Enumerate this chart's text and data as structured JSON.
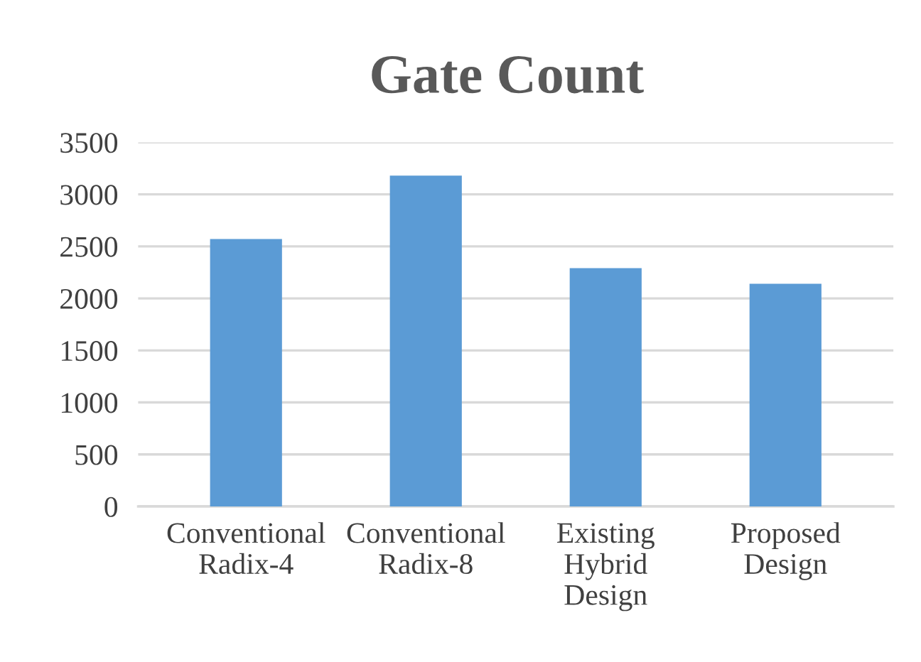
{
  "chart_data": {
    "type": "bar",
    "title": "Gate Count",
    "categories": [
      "Conventional\nRadix-4",
      "Conventional\nRadix-8",
      "Existing\nHybrid\nDesign",
      "Proposed\nDesign"
    ],
    "values": [
      2570,
      3180,
      2290,
      2140
    ],
    "color": "#5b9bd5",
    "ylim": [
      0,
      3500
    ],
    "yticks": [
      0,
      500,
      1000,
      1500,
      2000,
      2500,
      3000,
      3500
    ],
    "grid": "y",
    "legend": false
  }
}
